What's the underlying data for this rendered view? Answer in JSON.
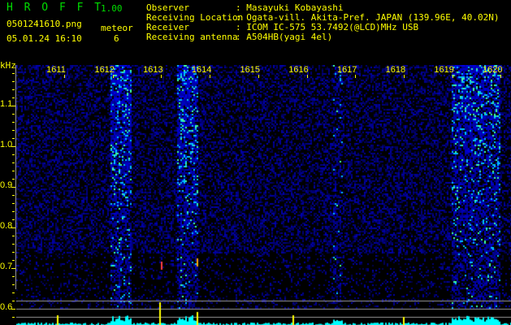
{
  "app": {
    "title": "H R O F F T",
    "version": "1.00"
  },
  "file": {
    "name": "0501241610.png",
    "datetime": "05.01.24 16:10"
  },
  "meteor": {
    "label": "meteor",
    "count": "6"
  },
  "info": [
    {
      "label": "Observer",
      "value": ": Masayuki Kobayashi"
    },
    {
      "label": "Receiving Location",
      "value": ": Ogata-vill. Akita-Pref. JAPAN (139.96E, 40.02N)"
    },
    {
      "label": "Receiver",
      "value": ": ICOM IC-575 53.7492(@LCD)MHz USB"
    },
    {
      "label": "Receiving antenna",
      "value": ": A504HB(yagi 4el)"
    }
  ],
  "axis": {
    "unit": "kHz",
    "y_labels": [
      "1.1",
      "1.0",
      "0.9",
      "0.8",
      "0.7",
      "0.6"
    ],
    "x_labels": [
      "1611",
      "1612",
      "1613",
      "1614",
      "1615",
      "1616",
      "1617",
      "1618",
      "1619",
      "1620"
    ]
  },
  "colors": {
    "text": "#ffff00",
    "title": "#00dd00",
    "noise": "#0000aa",
    "echo": "#00ffff",
    "grid": "#999999"
  }
}
